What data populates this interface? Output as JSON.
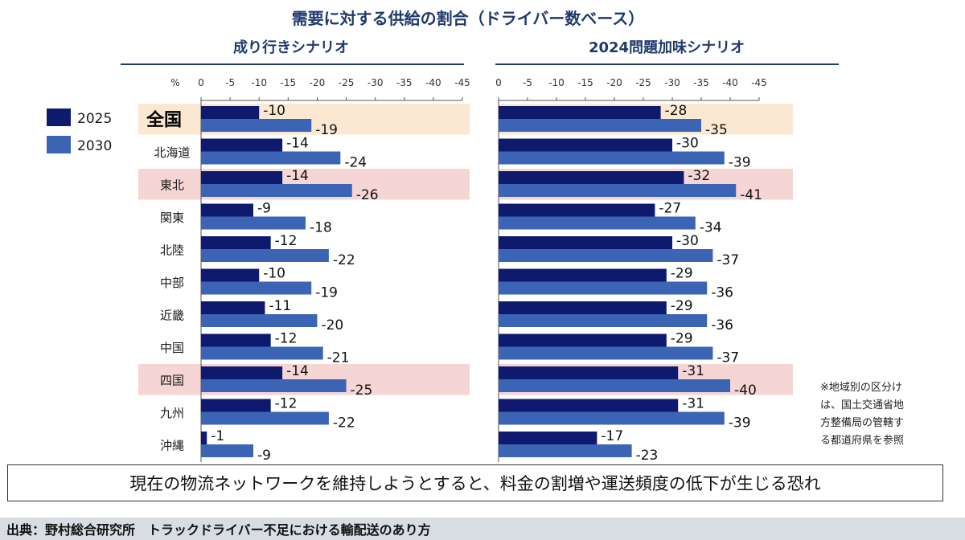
{
  "title": "需要に対する供給の割合（ドライバー数ベース）",
  "unit_label": "%",
  "colors": {
    "s2025": "#0e1a6e",
    "s2030": "#3b65b4",
    "highlight_peach": "#fbe8d2",
    "highlight_pink": "#f6d5d5",
    "rule": "#1f3a6e"
  },
  "legend": [
    {
      "name": "2025",
      "color": "#0e1a6e"
    },
    {
      "name": "2030",
      "color": "#3b65b4"
    }
  ],
  "note": [
    "※地域別の区分け",
    "は、国土交通省地",
    "方整備局の管轄す",
    "る都道府県を参照"
  ],
  "conclusion": "現在の物流ネットワークを維持しようとすると、料金の割増や運送頻度の低下が生じる恐れ",
  "source": "出典：野村総合研究所　トラックドライバー不足における輸配送のあり方",
  "chart_data": [
    {
      "type": "bar",
      "orientation": "horizontal",
      "title": "成り行きシナリオ",
      "xlim": [
        0,
        -45
      ],
      "ticks": [
        "0",
        "-5",
        "-10",
        "-15",
        "-20",
        "-25",
        "-30",
        "-35",
        "-40",
        "-45"
      ],
      "categories": [
        "全国",
        "北海道",
        "東北",
        "関東",
        "北陸",
        "中部",
        "近畿",
        "中国",
        "四国",
        "九州",
        "沖縄"
      ],
      "highlight": {
        "全国": "peach",
        "東北": "pink",
        "四国": "pink"
      },
      "series": [
        {
          "name": "2025",
          "values": [
            -10,
            -14,
            -14,
            -9,
            -12,
            -10,
            -11,
            -12,
            -14,
            -12,
            -1
          ]
        },
        {
          "name": "2030",
          "values": [
            -19,
            -24,
            -26,
            -18,
            -22,
            -19,
            -20,
            -21,
            -25,
            -22,
            -9
          ]
        }
      ]
    },
    {
      "type": "bar",
      "orientation": "horizontal",
      "title": "2024問題加味シナリオ",
      "xlim": [
        0,
        -45
      ],
      "ticks": [
        "0",
        "-5",
        "-10",
        "-15",
        "-20",
        "-25",
        "-30",
        "-35",
        "-40",
        "-45"
      ],
      "categories": [
        "全国",
        "北海道",
        "東北",
        "関東",
        "北陸",
        "中部",
        "近畿",
        "中国",
        "四国",
        "九州",
        "沖縄"
      ],
      "highlight": {
        "全国": "peach",
        "東北": "pink",
        "四国": "pink"
      },
      "series": [
        {
          "name": "2025",
          "values": [
            -28,
            -30,
            -32,
            -27,
            -30,
            -29,
            -29,
            -29,
            -31,
            -31,
            -17
          ]
        },
        {
          "name": "2030",
          "values": [
            -35,
            -39,
            -41,
            -34,
            -37,
            -36,
            -36,
            -37,
            -40,
            -39,
            -23
          ]
        }
      ]
    }
  ]
}
